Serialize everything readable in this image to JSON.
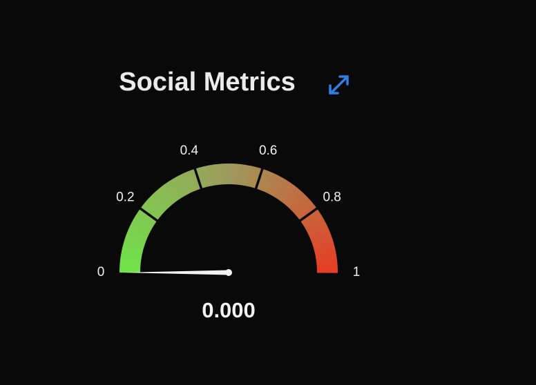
{
  "chart_data": {
    "type": "gauge",
    "title": "Social Metrics",
    "value": 0,
    "value_label": "0.000",
    "range": [
      0,
      1
    ],
    "ticks": [
      0,
      0.2,
      0.4,
      0.6,
      0.8,
      1
    ],
    "colors": [
      "#6fe44a",
      "#9d9a5c",
      "#e63d24"
    ]
  }
}
